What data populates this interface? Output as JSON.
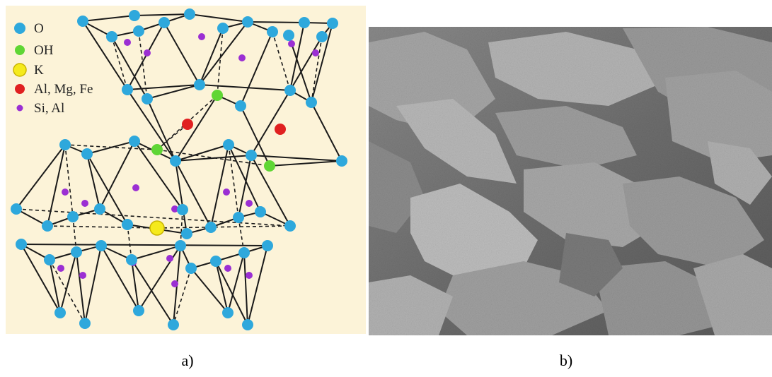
{
  "legend": [
    {
      "label": "O"
    },
    {
      "label": "OH"
    },
    {
      "label": "K"
    },
    {
      "label": "Al, Mg, Fe"
    },
    {
      "label": "Si, Al"
    }
  ],
  "panels": [
    {
      "caption": "a)"
    },
    {
      "caption": "b)"
    }
  ]
}
